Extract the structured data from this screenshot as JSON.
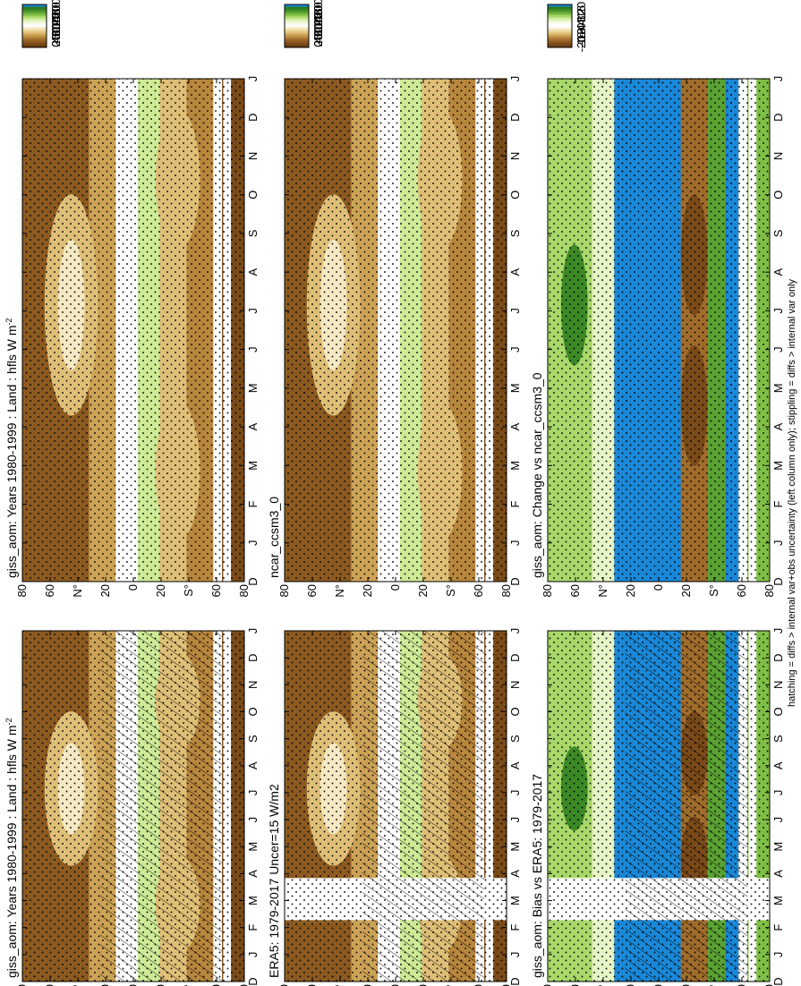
{
  "footer_note": "hatching = diffs > internal var+obs uncertainty (left column only); stippling = diffs > internal var only",
  "colors": {
    "abs_scale": [
      "#6b3f12",
      "#7a4a18",
      "#8c5a20",
      "#a06c2c",
      "#b8873e",
      "#cca256",
      "#dfbf77",
      "#ecd79a",
      "#f5e9c4",
      "#ffffff",
      "#f6fbe8",
      "#e6f5c5",
      "#cdeb97",
      "#a9d86a",
      "#80bf47",
      "#5aa233",
      "#3c8a26",
      "#2a7a1e",
      "#1a88d8"
    ],
    "diff_scale": [
      "#6b3f12",
      "#7a4a18",
      "#8c5a20",
      "#a06c2c",
      "#b8873e",
      "#cca256",
      "#dfbf77",
      "#ecd79a",
      "#f5e9c4",
      "#ffffff",
      "#ffffff",
      "#f6fbe8",
      "#e6f5c5",
      "#cdeb97",
      "#a9d86a",
      "#80bf47",
      "#5aa233",
      "#3c8a26",
      "#2a7a1e",
      "#1a88d8"
    ]
  },
  "chart_data": [
    {
      "type": "heatmap",
      "panel": "top-left",
      "title": "giss_aom: Years 1980-1999 : Land : hfls W m",
      "title_superscript": "-2",
      "x_ticks": [
        "D",
        "J",
        "F",
        "M",
        "A",
        "M",
        "J",
        "J",
        "A",
        "S",
        "O",
        "N",
        "D",
        "J"
      ],
      "y_ticks": [
        "80",
        "60",
        "N°",
        "20",
        "0",
        "20",
        "S°",
        "60",
        "80"
      ],
      "colorbar": [
        "200",
        "180",
        "160",
        "140",
        "120",
        "100",
        "80",
        "60",
        "40",
        "20",
        "0"
      ],
      "overlay": "hatching and stippling"
    },
    {
      "type": "heatmap",
      "panel": "top-right",
      "title": "giss_aom: Years 1980-1999 : Land : hfls W m",
      "title_superscript": "-2",
      "x_ticks": [
        "D",
        "J",
        "F",
        "M",
        "A",
        "M",
        "J",
        "J",
        "A",
        "S",
        "O",
        "N",
        "D",
        "J"
      ],
      "y_ticks": [
        "80",
        "60",
        "N°",
        "20",
        "0",
        "20",
        "S°",
        "60",
        "80"
      ],
      "colorbar": [
        "200",
        "180",
        "160",
        "140",
        "120",
        "100",
        "80",
        "60",
        "40",
        "20",
        "0"
      ],
      "overlay": "stippling"
    },
    {
      "type": "heatmap",
      "panel": "middle-left",
      "title": "ERA5: 1979-2017 Uncer=15 W/m2",
      "x_ticks": [
        "D",
        "J",
        "F",
        "M",
        "A",
        "M",
        "J",
        "J",
        "A",
        "S",
        "O",
        "N",
        "D",
        "J"
      ],
      "y_ticks": [
        "80",
        "60",
        "N°",
        "20",
        "0",
        "20",
        "S°",
        "60",
        "80"
      ],
      "colorbar": [
        "200",
        "180",
        "160",
        "140",
        "120",
        "100",
        "80",
        "60",
        "40",
        "20",
        "0"
      ],
      "overlay": "hatching and stippling"
    },
    {
      "type": "heatmap",
      "panel": "middle-right",
      "title": "ncar_ccsm3_0",
      "x_ticks": [
        "D",
        "J",
        "F",
        "M",
        "A",
        "M",
        "J",
        "J",
        "A",
        "S",
        "O",
        "N",
        "D",
        "J"
      ],
      "y_ticks": [
        "80",
        "60",
        "N°",
        "20",
        "0",
        "20",
        "S°",
        "60",
        "80"
      ],
      "colorbar": [
        "200",
        "180",
        "160",
        "140",
        "120",
        "100",
        "80",
        "60",
        "40",
        "20",
        "0"
      ],
      "overlay": "stippling"
    },
    {
      "type": "heatmap",
      "panel": "bottom-left",
      "title": "giss_aom: Bias vs ERA5: 1979-2017",
      "x_ticks": [
        "D",
        "J",
        "F",
        "M",
        "A",
        "M",
        "J",
        "J",
        "A",
        "S",
        "O",
        "N",
        "D",
        "J"
      ],
      "y_ticks": [
        "80",
        "60",
        "N°",
        "20",
        "0",
        "20",
        "S°",
        "60",
        "80"
      ],
      "colorbar": [
        "20",
        "16",
        "12",
        "8",
        "4",
        "0",
        "-4",
        "-8",
        "-12",
        "-16",
        "-20"
      ],
      "overlay": "hatching and stippling"
    },
    {
      "type": "heatmap",
      "panel": "bottom-right",
      "title": "giss_aom: Change vs ncar_ccsm3_0",
      "x_ticks": [
        "D",
        "J",
        "F",
        "M",
        "A",
        "M",
        "J",
        "J",
        "A",
        "S",
        "O",
        "N",
        "D",
        "J"
      ],
      "y_ticks": [
        "80",
        "60",
        "N°",
        "20",
        "0",
        "20",
        "S°",
        "60",
        "80"
      ],
      "colorbar": [
        "20",
        "16",
        "12",
        "8",
        "4",
        "0",
        "-4",
        "-8",
        "-12",
        "-16",
        "-20"
      ],
      "overlay": "stippling"
    }
  ]
}
